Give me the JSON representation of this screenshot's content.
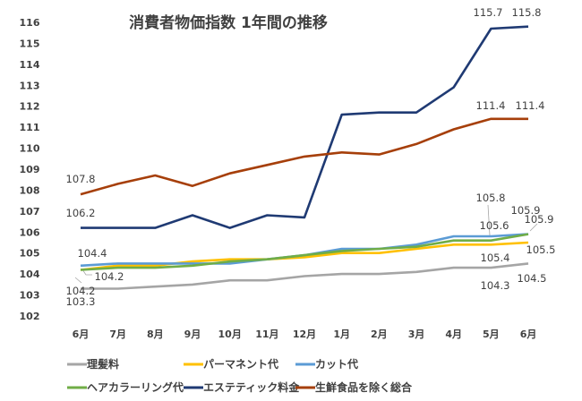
{
  "chart_data": {
    "type": "line",
    "title": "消費者物価指数  1年間の推移",
    "xlabel": "",
    "ylabel": "",
    "categories": [
      "6月",
      "7月",
      "8月",
      "9月",
      "10月",
      "11月",
      "12月",
      "1月",
      "2月",
      "3月",
      "4月",
      "5月",
      "6月"
    ],
    "y_ticks": [
      "116",
      "115",
      "114",
      "113",
      "112",
      "111",
      "110",
      "109",
      "108",
      "107",
      "106",
      "105",
      "104",
      "103",
      "102"
    ],
    "ylim": [
      102,
      116
    ],
    "grid": false,
    "legend_position": "bottom",
    "series": [
      {
        "name": "理髪料",
        "color": "#a5a5a5",
        "values": [
          103.3,
          103.3,
          103.4,
          103.5,
          103.7,
          103.7,
          103.9,
          104.0,
          104.0,
          104.1,
          104.3,
          104.3,
          104.5
        ],
        "labels": [
          {
            "index": 0,
            "text": "103.3"
          },
          {
            "index": 11,
            "text": "104.3"
          },
          {
            "index": 12,
            "text": "104.5"
          }
        ]
      },
      {
        "name": "パーマネント代",
        "color": "#ffc000",
        "values": [
          104.2,
          104.4,
          104.4,
          104.6,
          104.7,
          104.7,
          104.8,
          105.0,
          105.0,
          105.2,
          105.4,
          105.4,
          105.5
        ],
        "labels": [
          {
            "index": 0,
            "text": "104.2"
          },
          {
            "index": 11,
            "text": "105.4"
          },
          {
            "index": 12,
            "text": "105.5"
          }
        ]
      },
      {
        "name": "カット代",
        "color": "#5b9bd5",
        "values": [
          104.4,
          104.5,
          104.5,
          104.5,
          104.5,
          104.7,
          104.9,
          105.2,
          105.2,
          105.4,
          105.8,
          105.8,
          105.9
        ],
        "labels": [
          {
            "index": 0,
            "text": "104.4"
          },
          {
            "index": 11,
            "text": "105.8"
          },
          {
            "index": 12,
            "text": "105.9"
          }
        ]
      },
      {
        "name": "ヘアカラーリング代",
        "color": "#70ad47",
        "values": [
          104.2,
          104.3,
          104.3,
          104.4,
          104.6,
          104.7,
          104.9,
          105.1,
          105.2,
          105.3,
          105.6,
          105.6,
          105.9
        ],
        "labels": [
          {
            "index": 0,
            "text": "104.2"
          },
          {
            "index": 11,
            "text": "105.6"
          },
          {
            "index": 12,
            "text": "105.9"
          }
        ]
      },
      {
        "name": "エステティック料金",
        "color": "#1f3a73",
        "values": [
          106.2,
          106.2,
          106.2,
          106.8,
          106.2,
          106.8,
          106.7,
          111.6,
          111.7,
          111.7,
          112.9,
          115.7,
          115.8
        ],
        "labels": [
          {
            "index": 0,
            "text": "106.2"
          },
          {
            "index": 11,
            "text": "115.7"
          },
          {
            "index": 12,
            "text": "115.8"
          }
        ]
      },
      {
        "name": "生鮮食品を除く総合",
        "color": "#a63f0a",
        "values": [
          107.8,
          108.3,
          108.7,
          108.2,
          108.8,
          109.2,
          109.6,
          109.8,
          109.7,
          110.2,
          110.9,
          111.4,
          111.4
        ],
        "labels": [
          {
            "index": 0,
            "text": "107.8"
          },
          {
            "index": 11,
            "text": "111.4"
          },
          {
            "index": 12,
            "text": "111.4"
          }
        ]
      }
    ]
  }
}
